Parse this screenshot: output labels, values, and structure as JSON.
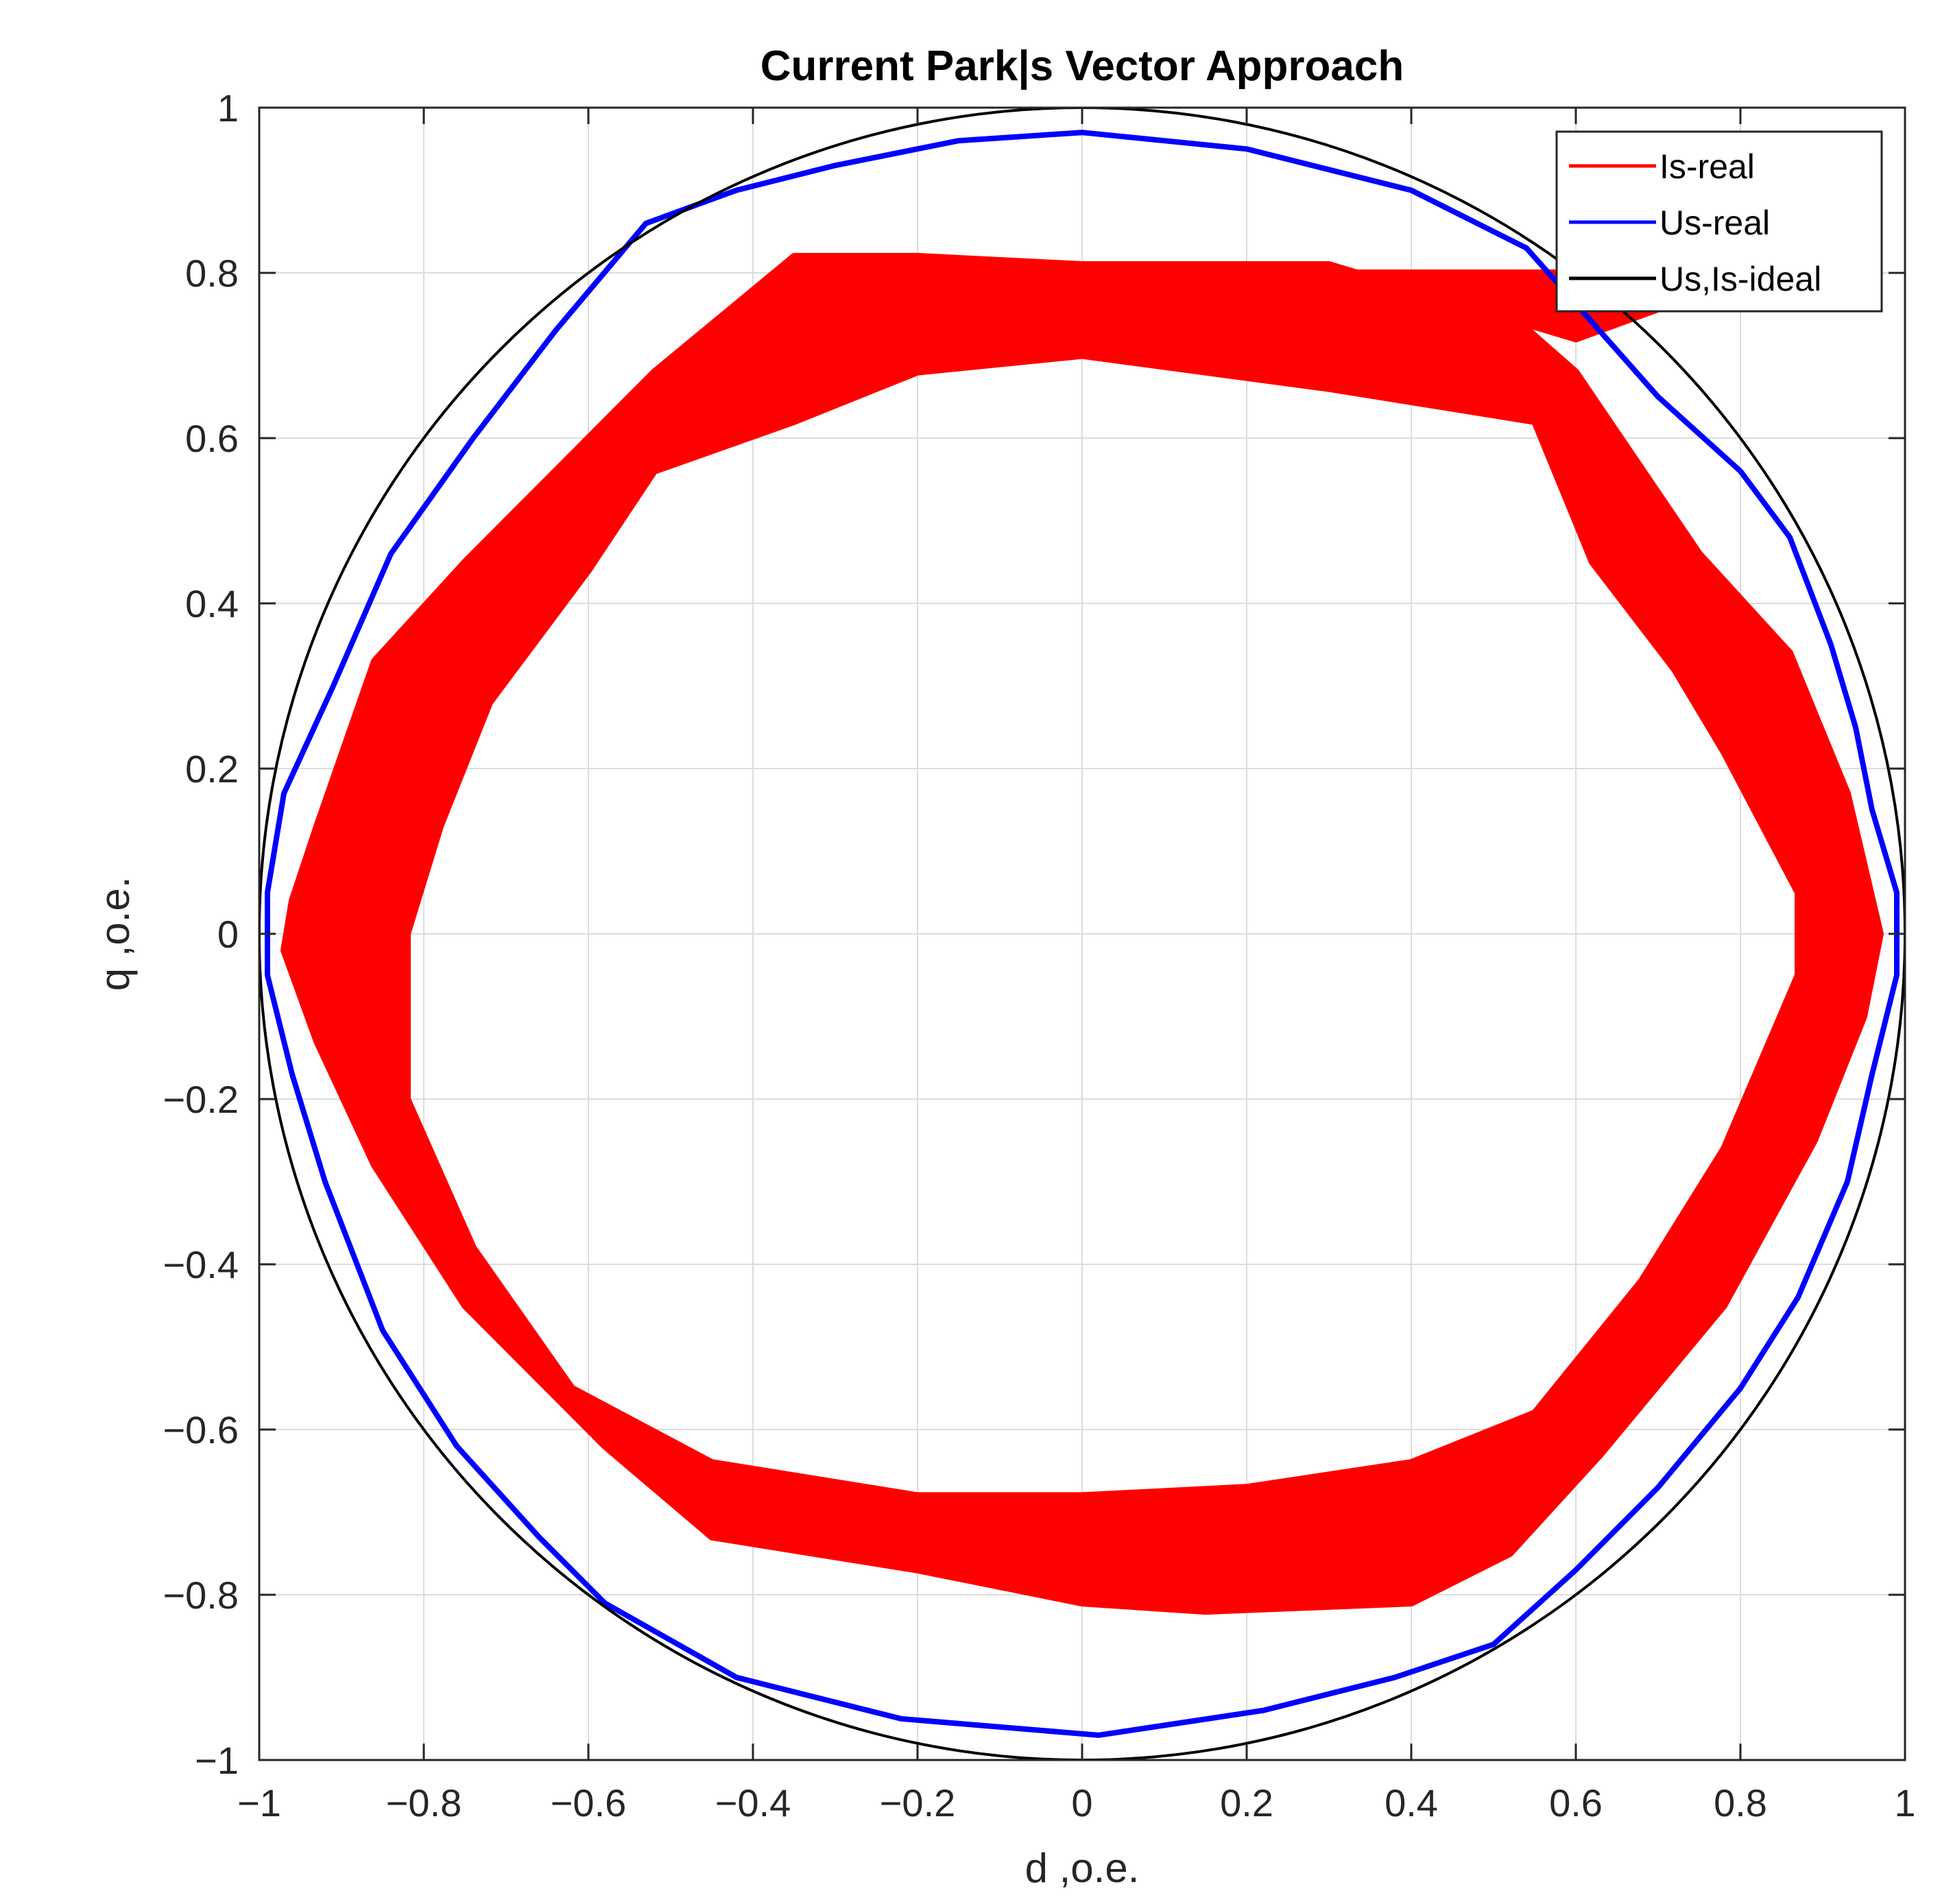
{
  "chart_data": {
    "type": "line",
    "title": "Current Park|s Vector Approach",
    "xlabel": "d ,o.e.",
    "ylabel": "q ,o.e.",
    "xlim": [
      -1,
      1
    ],
    "ylim": [
      -1,
      1
    ],
    "grid": true,
    "legend_location": "top-right",
    "xticks": [
      -1,
      -0.8,
      -0.6,
      -0.4,
      -0.2,
      0,
      0.2,
      0.4,
      0.6,
      0.8,
      1
    ],
    "yticks": [
      -1,
      -0.8,
      -0.6,
      -0.4,
      -0.2,
      0,
      0.2,
      0.4,
      0.6,
      0.8,
      1
    ],
    "xtick_labels": [
      "−1",
      "−0.8",
      "−0.6",
      "−0.4",
      "−0.2",
      "0",
      "0.2",
      "0.4",
      "0.6",
      "0.8",
      "1"
    ],
    "ytick_labels": [
      "−1",
      "−0.8",
      "−0.6",
      "−0.4",
      "−0.2",
      "0",
      "0.2",
      "0.4",
      "0.6",
      "0.8",
      "1"
    ],
    "series": [
      {
        "name": "Is-real",
        "color": "#ff0000",
        "style": "hexagonal band (many overlapping trajectories)",
        "outer_boundary": [
          [
            0.82,
            0.8
          ],
          [
            0.6,
            0.72
          ],
          [
            0.3,
            0.81
          ],
          [
            0.0,
            0.81
          ],
          [
            -0.2,
            0.82
          ],
          [
            -0.35,
            0.82
          ],
          [
            -0.52,
            0.68
          ],
          [
            -0.75,
            0.45
          ],
          [
            -0.86,
            0.33
          ],
          [
            -0.93,
            0.13
          ],
          [
            -0.96,
            0.04
          ],
          [
            -0.97,
            -0.02
          ],
          [
            -0.93,
            -0.13
          ],
          [
            -0.86,
            -0.28
          ],
          [
            -0.75,
            -0.45
          ],
          [
            -0.58,
            -0.62
          ],
          [
            -0.45,
            -0.73
          ],
          [
            -0.2,
            -0.77
          ],
          [
            0.0,
            -0.81
          ],
          [
            0.15,
            -0.82
          ],
          [
            0.4,
            -0.81
          ],
          [
            0.52,
            -0.75
          ],
          [
            0.63,
            -0.63
          ],
          [
            0.78,
            -0.45
          ],
          [
            0.89,
            -0.25
          ],
          [
            0.95,
            -0.1
          ],
          [
            0.97,
            0.0
          ],
          [
            0.93,
            0.17
          ],
          [
            0.86,
            0.34
          ],
          [
            0.75,
            0.46
          ],
          [
            0.6,
            0.68
          ],
          [
            0.52,
            0.75
          ],
          [
            0.3,
            0.8
          ]
        ],
        "inner_boundary": [
          [
            0.55,
            0.62
          ],
          [
            0.3,
            0.66
          ],
          [
            0.0,
            0.7
          ],
          [
            -0.2,
            0.68
          ],
          [
            -0.35,
            0.62
          ],
          [
            -0.52,
            0.56
          ],
          [
            -0.6,
            0.44
          ],
          [
            -0.72,
            0.28
          ],
          [
            -0.78,
            0.13
          ],
          [
            -0.82,
            0.0
          ],
          [
            -0.82,
            -0.2
          ],
          [
            -0.74,
            -0.38
          ],
          [
            -0.62,
            -0.55
          ],
          [
            -0.45,
            -0.64
          ],
          [
            -0.2,
            -0.68
          ],
          [
            0.0,
            -0.68
          ],
          [
            0.2,
            -0.67
          ],
          [
            0.4,
            -0.64
          ],
          [
            0.55,
            -0.58
          ],
          [
            0.68,
            -0.42
          ],
          [
            0.78,
            -0.26
          ],
          [
            0.87,
            -0.05
          ],
          [
            0.87,
            0.05
          ],
          [
            0.78,
            0.22
          ],
          [
            0.72,
            0.32
          ],
          [
            0.62,
            0.45
          ]
        ]
      },
      {
        "name": "Us-real",
        "color": "#0000ff",
        "points": [
          [
            0.0,
            0.97
          ],
          [
            0.2,
            0.95
          ],
          [
            0.4,
            0.9
          ],
          [
            0.54,
            0.83
          ],
          [
            0.62,
            0.74
          ],
          [
            0.7,
            0.65
          ],
          [
            0.8,
            0.56
          ],
          [
            0.86,
            0.48
          ],
          [
            0.91,
            0.35
          ],
          [
            0.94,
            0.25
          ],
          [
            0.96,
            0.15
          ],
          [
            0.99,
            0.05
          ],
          [
            0.99,
            -0.05
          ],
          [
            0.96,
            -0.17
          ],
          [
            0.93,
            -0.3
          ],
          [
            0.87,
            -0.44
          ],
          [
            0.8,
            -0.55
          ],
          [
            0.7,
            -0.67
          ],
          [
            0.6,
            -0.77
          ],
          [
            0.5,
            -0.86
          ],
          [
            0.38,
            -0.9
          ],
          [
            0.22,
            -0.94
          ],
          [
            0.02,
            -0.97
          ],
          [
            -0.22,
            -0.95
          ],
          [
            -0.42,
            -0.9
          ],
          [
            -0.58,
            -0.81
          ],
          [
            -0.66,
            -0.73
          ],
          [
            -0.76,
            -0.62
          ],
          [
            -0.85,
            -0.48
          ],
          [
            -0.92,
            -0.3
          ],
          [
            -0.96,
            -0.17
          ],
          [
            -0.99,
            -0.05
          ],
          [
            -0.99,
            0.05
          ],
          [
            -0.97,
            0.17
          ],
          [
            -0.91,
            0.3
          ],
          [
            -0.84,
            0.46
          ],
          [
            -0.74,
            0.6
          ],
          [
            -0.64,
            0.73
          ],
          [
            -0.53,
            0.86
          ],
          [
            -0.42,
            0.9
          ],
          [
            -0.3,
            0.93
          ],
          [
            -0.15,
            0.96
          ],
          [
            0.0,
            0.97
          ]
        ]
      },
      {
        "name": "Us,Is-ideal",
        "color": "#000000",
        "shape": "unit circle",
        "radius": 1
      }
    ]
  }
}
